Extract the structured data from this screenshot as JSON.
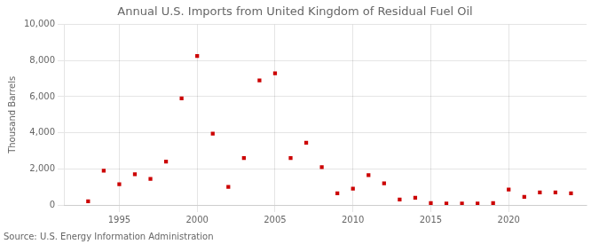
{
  "chart_data": {
    "type": "scatter",
    "title": "Annual U.S. Imports from United Kingdom of Residual Fuel Oil",
    "ylabel": "Thousand Barrels",
    "annotations": [
      "Source: U.S. Energy Information Administration"
    ],
    "color": "#cc0000",
    "marker": "square",
    "grid": true,
    "xlim": [
      1991.5,
      2025
    ],
    "xticks": [
      1995,
      2000,
      2005,
      2010,
      2015,
      2020
    ],
    "ylim": [
      0,
      10000
    ],
    "yticks": [
      0,
      {
        "value": 2000,
        "label": "2,000"
      },
      {
        "value": 4000,
        "label": "4,000"
      },
      {
        "value": 6000,
        "label": "6,000"
      },
      {
        "value": 8000,
        "label": "8,000"
      },
      {
        "value": 10000,
        "label": "10,000"
      }
    ],
    "x": [
      1993,
      1994,
      1995,
      1996,
      1997,
      1998,
      1999,
      2000,
      2001,
      2002,
      2003,
      2004,
      2005,
      2006,
      2007,
      2008,
      2009,
      2010,
      2011,
      2012,
      2013,
      2014,
      2015,
      2016,
      2017,
      2018,
      2019,
      2020,
      2021,
      2022,
      2023,
      2024
    ],
    "values": [
      200,
      1900,
      1150,
      1700,
      1450,
      2400,
      5900,
      8250,
      3950,
      1000,
      2600,
      6900,
      7300,
      2600,
      3450,
      2100,
      650,
      900,
      1650,
      1200,
      300,
      400,
      100,
      80,
      80,
      80,
      100,
      850,
      450,
      700,
      700,
      650
    ]
  }
}
